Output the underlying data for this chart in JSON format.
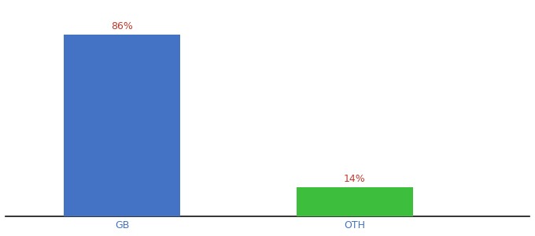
{
  "categories": [
    "GB",
    "OTH"
  ],
  "values": [
    86,
    14
  ],
  "bar_colors": [
    "#4472C4",
    "#3DBF3D"
  ],
  "label_color": "#c0392b",
  "tick_color": "#4472C4",
  "ylim": [
    0,
    100
  ],
  "background_color": "#ffffff",
  "bar_width": 0.5,
  "label_fontsize": 9,
  "tick_fontsize": 9
}
